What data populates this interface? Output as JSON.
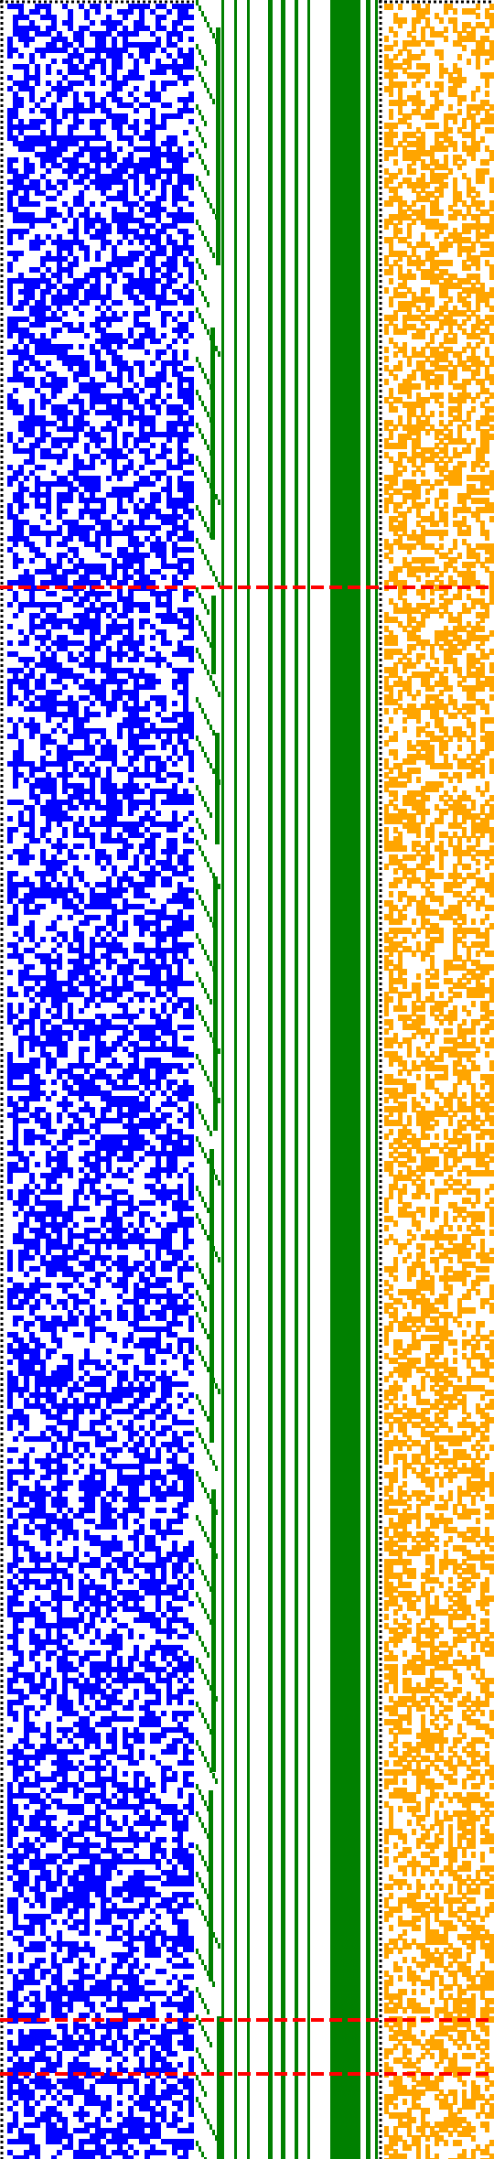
{
  "colors": {
    "background": "#ffffff",
    "blue_cells": "#0000ff",
    "green_marks": "#008000",
    "orange_cells": "#ffa500",
    "red_markers": "#ff0000",
    "dotted_borders": "#000000"
  },
  "panels": [
    {
      "name": "blue-random-grid",
      "color": "blue_cells",
      "fill_fraction": 0.55
    },
    {
      "name": "green-stair-pattern",
      "color": "green_marks"
    },
    {
      "name": "green-vertical-bars",
      "color": "green_marks"
    },
    {
      "name": "orange-random-grid",
      "color": "orange_cells",
      "fill_fraction": 0.45
    }
  ],
  "horizontal_markers": {
    "count": 3,
    "style": "dashed-red"
  }
}
